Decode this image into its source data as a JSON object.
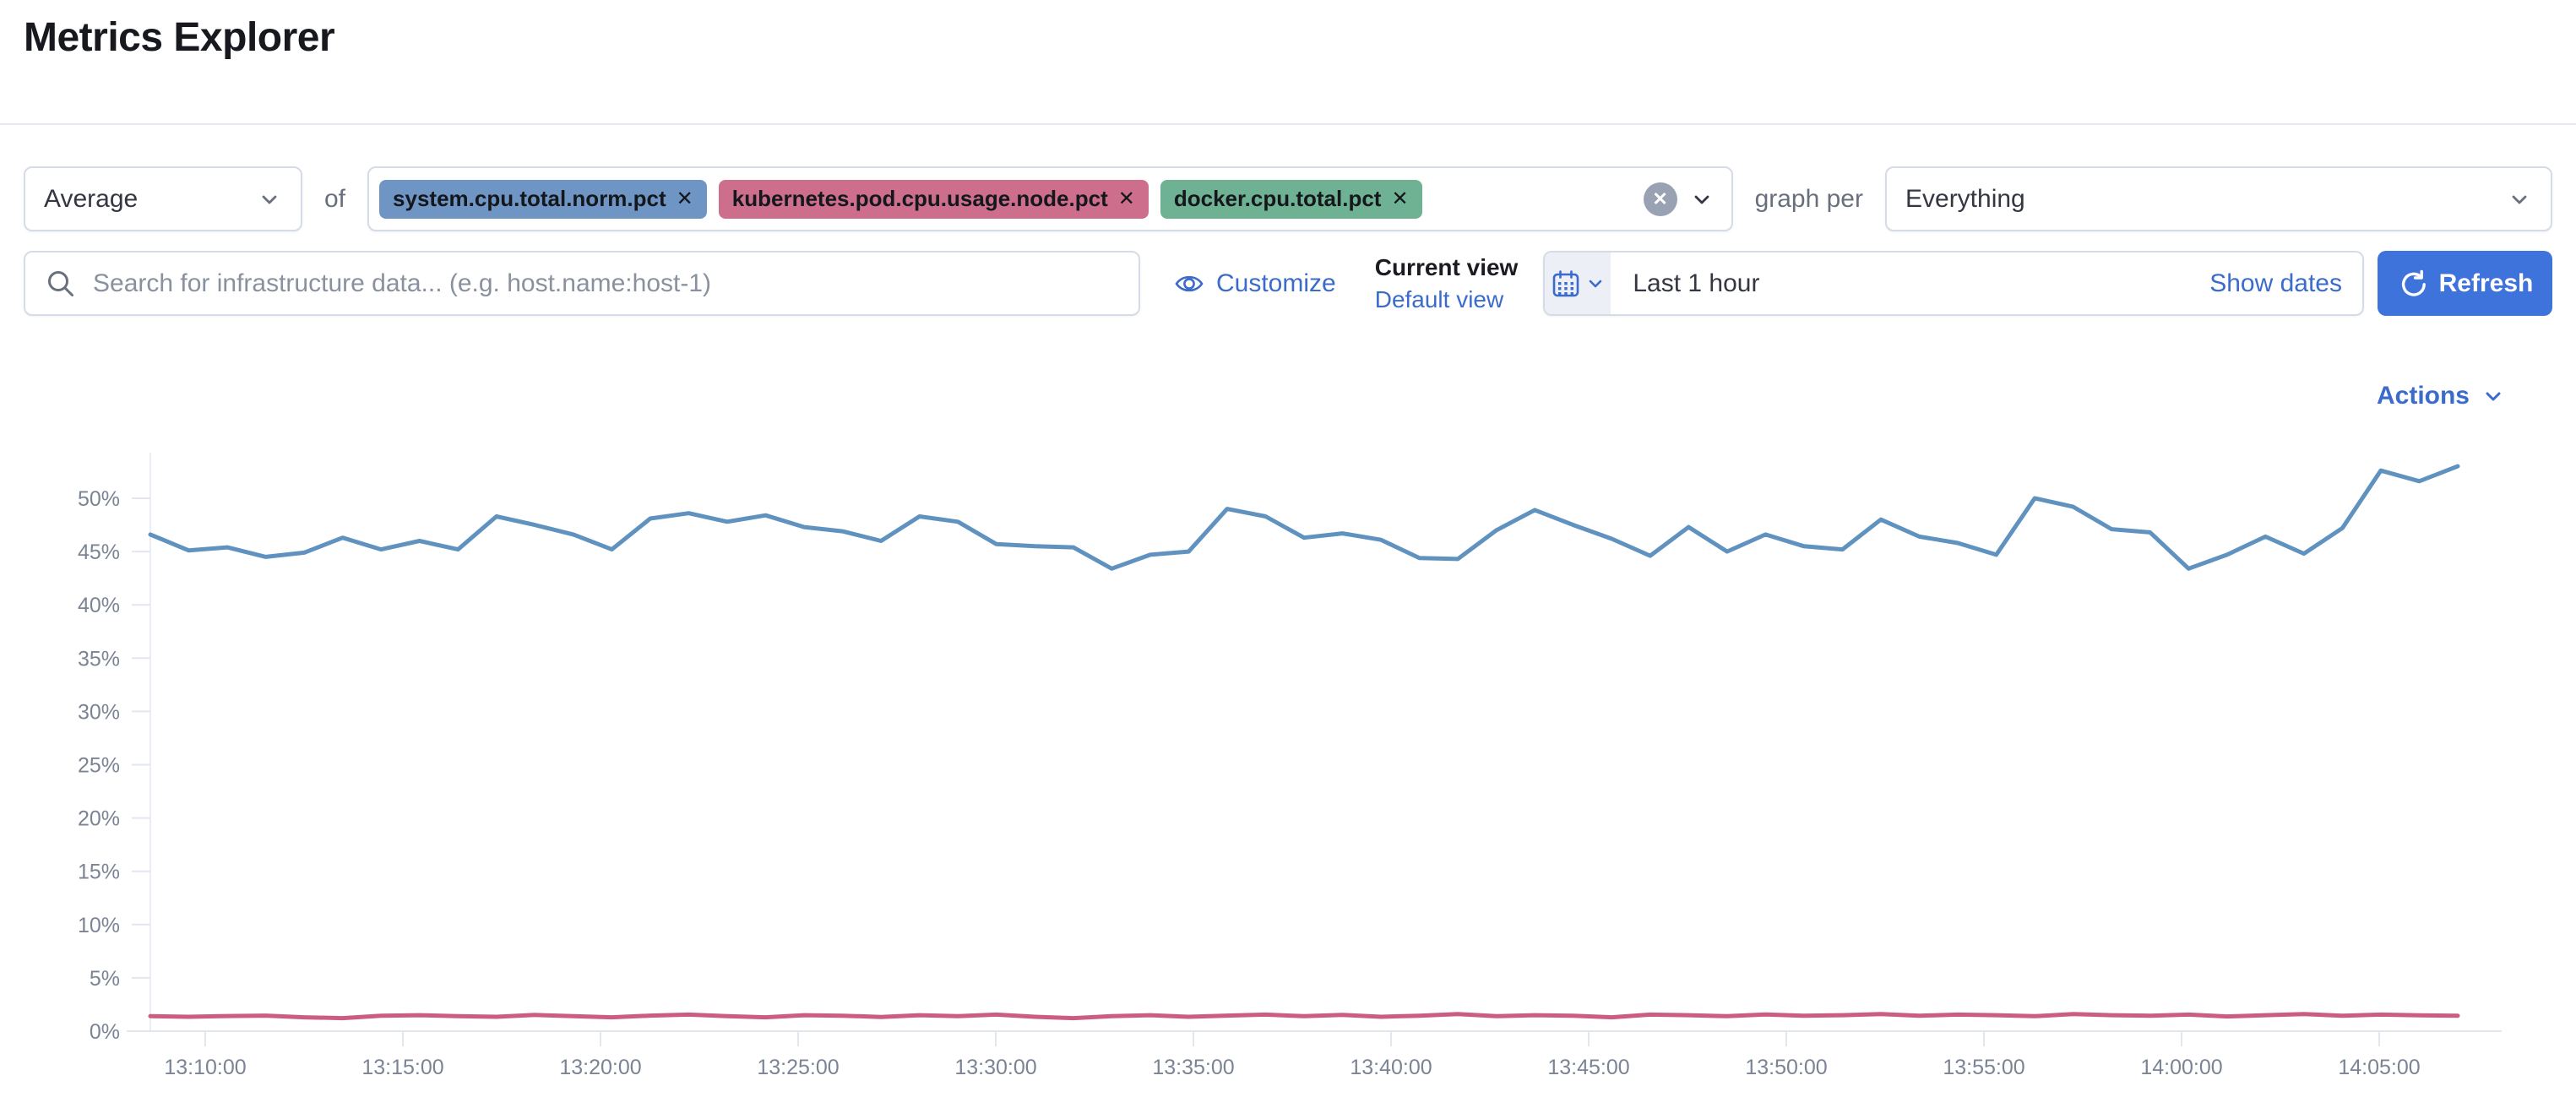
{
  "page": {
    "title": "Metrics Explorer"
  },
  "toolbar": {
    "aggregation_value": "Average",
    "of_label": "of",
    "metrics": [
      {
        "label": "system.cpu.total.norm.pct",
        "color": "#6E95C4"
      },
      {
        "label": "kubernetes.pod.cpu.usage.node.pct",
        "color": "#CC6E8C"
      },
      {
        "label": "docker.cpu.total.pct",
        "color": "#6FB293"
      }
    ],
    "graph_per_label": "graph per",
    "graph_per_value": "Everything"
  },
  "search": {
    "placeholder": "Search for infrastructure data... (e.g. host.name:host-1)"
  },
  "view_controls": {
    "customize_label": "Customize",
    "current_view_label": "Current view",
    "default_view_label": "Default view"
  },
  "timepicker": {
    "value": "Last 1 hour",
    "show_dates_label": "Show dates",
    "refresh_label": "Refresh"
  },
  "actions": {
    "label": "Actions"
  },
  "icons": {
    "remove": "✕",
    "clear_all": "✕"
  },
  "colors": {
    "link": "#3B6BCB",
    "primary_button": "#3D73DB",
    "border": "#D6DCE7",
    "axis_text": "#7A8494",
    "series_blue": "#6092C0",
    "series_pink": "#CB5D80"
  },
  "chart_data": {
    "type": "line",
    "title": "",
    "grid": false,
    "legend": "none",
    "x_axis": {
      "start_time": "13:08:30",
      "point_interval_seconds": 60,
      "tick_labels": [
        "13:10:00",
        "13:15:00",
        "13:20:00",
        "13:25:00",
        "13:30:00",
        "13:35:00",
        "13:40:00",
        "13:45:00",
        "13:50:00",
        "13:55:00",
        "14:00:00",
        "14:05:00"
      ]
    },
    "y_axis": {
      "unit": "percent",
      "min": 0,
      "max": 50,
      "tick_labels": [
        "0%",
        "5%",
        "10%",
        "15%",
        "20%",
        "25%",
        "30%",
        "35%",
        "40%",
        "45%",
        "50%"
      ]
    },
    "series": [
      {
        "name": "system.cpu.total.norm.pct",
        "color": "#6092C0",
        "values": [
          46.6,
          45.1,
          45.4,
          44.5,
          44.9,
          46.3,
          45.2,
          46.0,
          45.2,
          48.3,
          47.5,
          46.6,
          45.2,
          48.1,
          48.6,
          47.8,
          48.4,
          47.3,
          46.9,
          46.0,
          48.3,
          47.8,
          45.7,
          45.5,
          45.4,
          43.4,
          44.7,
          45.0,
          49.0,
          48.3,
          46.3,
          46.7,
          46.1,
          44.4,
          44.3,
          47.0,
          48.9,
          47.5,
          46.2,
          44.6,
          47.3,
          45.0,
          46.6,
          45.5,
          45.2,
          48.0,
          46.4,
          45.8,
          44.7,
          50.0,
          49.2,
          47.1,
          46.8,
          43.4,
          44.7,
          46.4,
          44.8,
          47.2,
          52.6,
          51.6,
          53.0
        ]
      },
      {
        "name": "kubernetes.pod.cpu.usage.node.pct",
        "color": "#CB5D80",
        "values": [
          1.4,
          1.35,
          1.42,
          1.46,
          1.3,
          1.22,
          1.45,
          1.5,
          1.4,
          1.35,
          1.52,
          1.4,
          1.3,
          1.46,
          1.55,
          1.4,
          1.3,
          1.5,
          1.45,
          1.33,
          1.5,
          1.4,
          1.55,
          1.35,
          1.22,
          1.4,
          1.5,
          1.35,
          1.46,
          1.55,
          1.4,
          1.52,
          1.35,
          1.45,
          1.6,
          1.4,
          1.5,
          1.45,
          1.3,
          1.55,
          1.5,
          1.4,
          1.56,
          1.45,
          1.5,
          1.6,
          1.45,
          1.55,
          1.5,
          1.4,
          1.6,
          1.5,
          1.45,
          1.55,
          1.38,
          1.5,
          1.6,
          1.45,
          1.55,
          1.48,
          1.45
        ]
      }
    ]
  }
}
